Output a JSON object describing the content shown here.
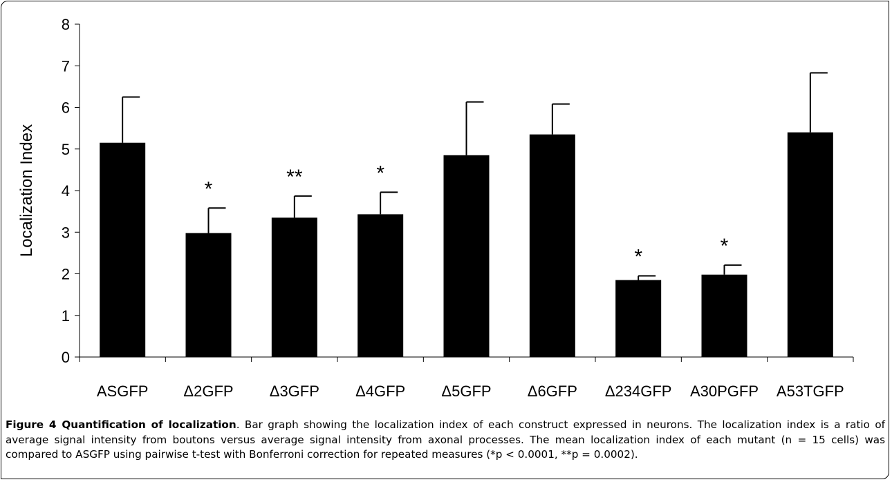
{
  "chart_data": {
    "type": "bar",
    "categories": [
      "ASGFP",
      "Δ2GFP",
      "Δ3GFP",
      "Δ4GFP",
      "Δ5GFP",
      "Δ6GFP",
      "Δ234GFP",
      "A30PGFP",
      "A53TGFP"
    ],
    "values": [
      5.15,
      2.98,
      3.35,
      3.43,
      4.85,
      5.35,
      1.85,
      1.98,
      5.4
    ],
    "error_upper": [
      1.1,
      0.6,
      0.52,
      0.53,
      1.28,
      0.73,
      0.1,
      0.23,
      1.43
    ],
    "annotations": [
      "",
      "*",
      "**",
      "*",
      "",
      "",
      "*",
      "*",
      ""
    ],
    "ylabel": "Localization Index",
    "xlabel": "",
    "ylim": [
      0,
      8
    ],
    "yticks": [
      "0",
      "1",
      "2",
      "3",
      "4",
      "5",
      "6",
      "7",
      "8"
    ],
    "bar_color": "#000000",
    "grid": false
  },
  "caption": {
    "title": "Figure 4 Quantification of localization",
    "text": ". Bar graph showing the localization index of each construct expressed in neurons. The localization index is a ratio of average signal intensity from boutons versus average signal intensity from axonal processes. The mean localization index of each mutant (n = 15 cells) was compared to ASGFP using pairwise t-test with Bonferroni correction for repeated measures (*p < 0.0001, **p = 0.0002)."
  }
}
